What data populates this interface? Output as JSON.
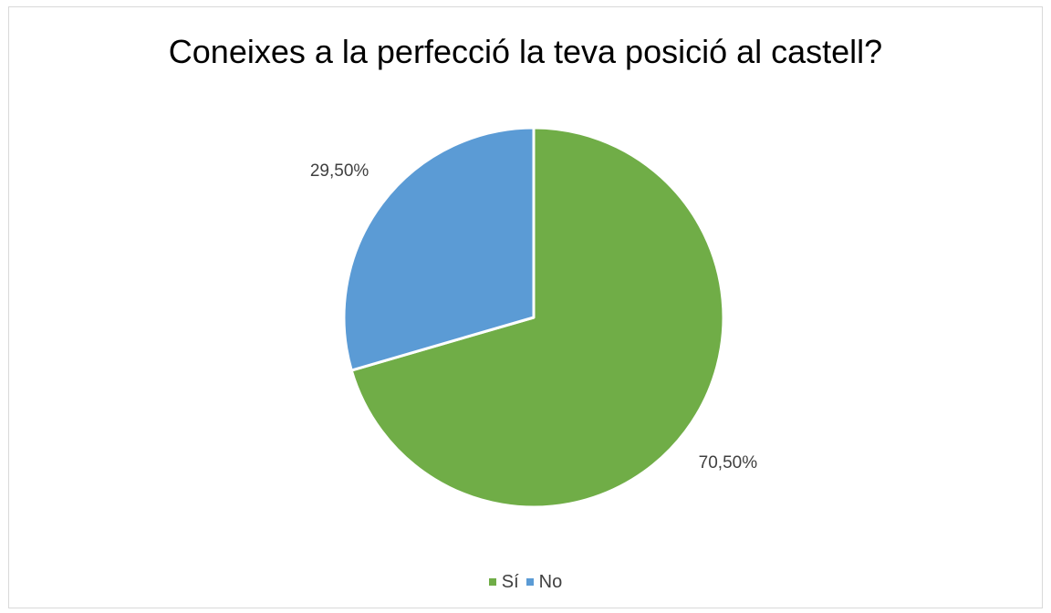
{
  "chart_data": {
    "type": "pie",
    "title": "Coneixes a la perfecció la teva posició al castell?",
    "categories": [
      "Sí",
      "No"
    ],
    "values": [
      70.5,
      29.5
    ],
    "data_labels": [
      "70,50%",
      "29,50%"
    ],
    "colors": [
      "#70ad47",
      "#5b9bd5"
    ],
    "legend_position": "bottom"
  }
}
